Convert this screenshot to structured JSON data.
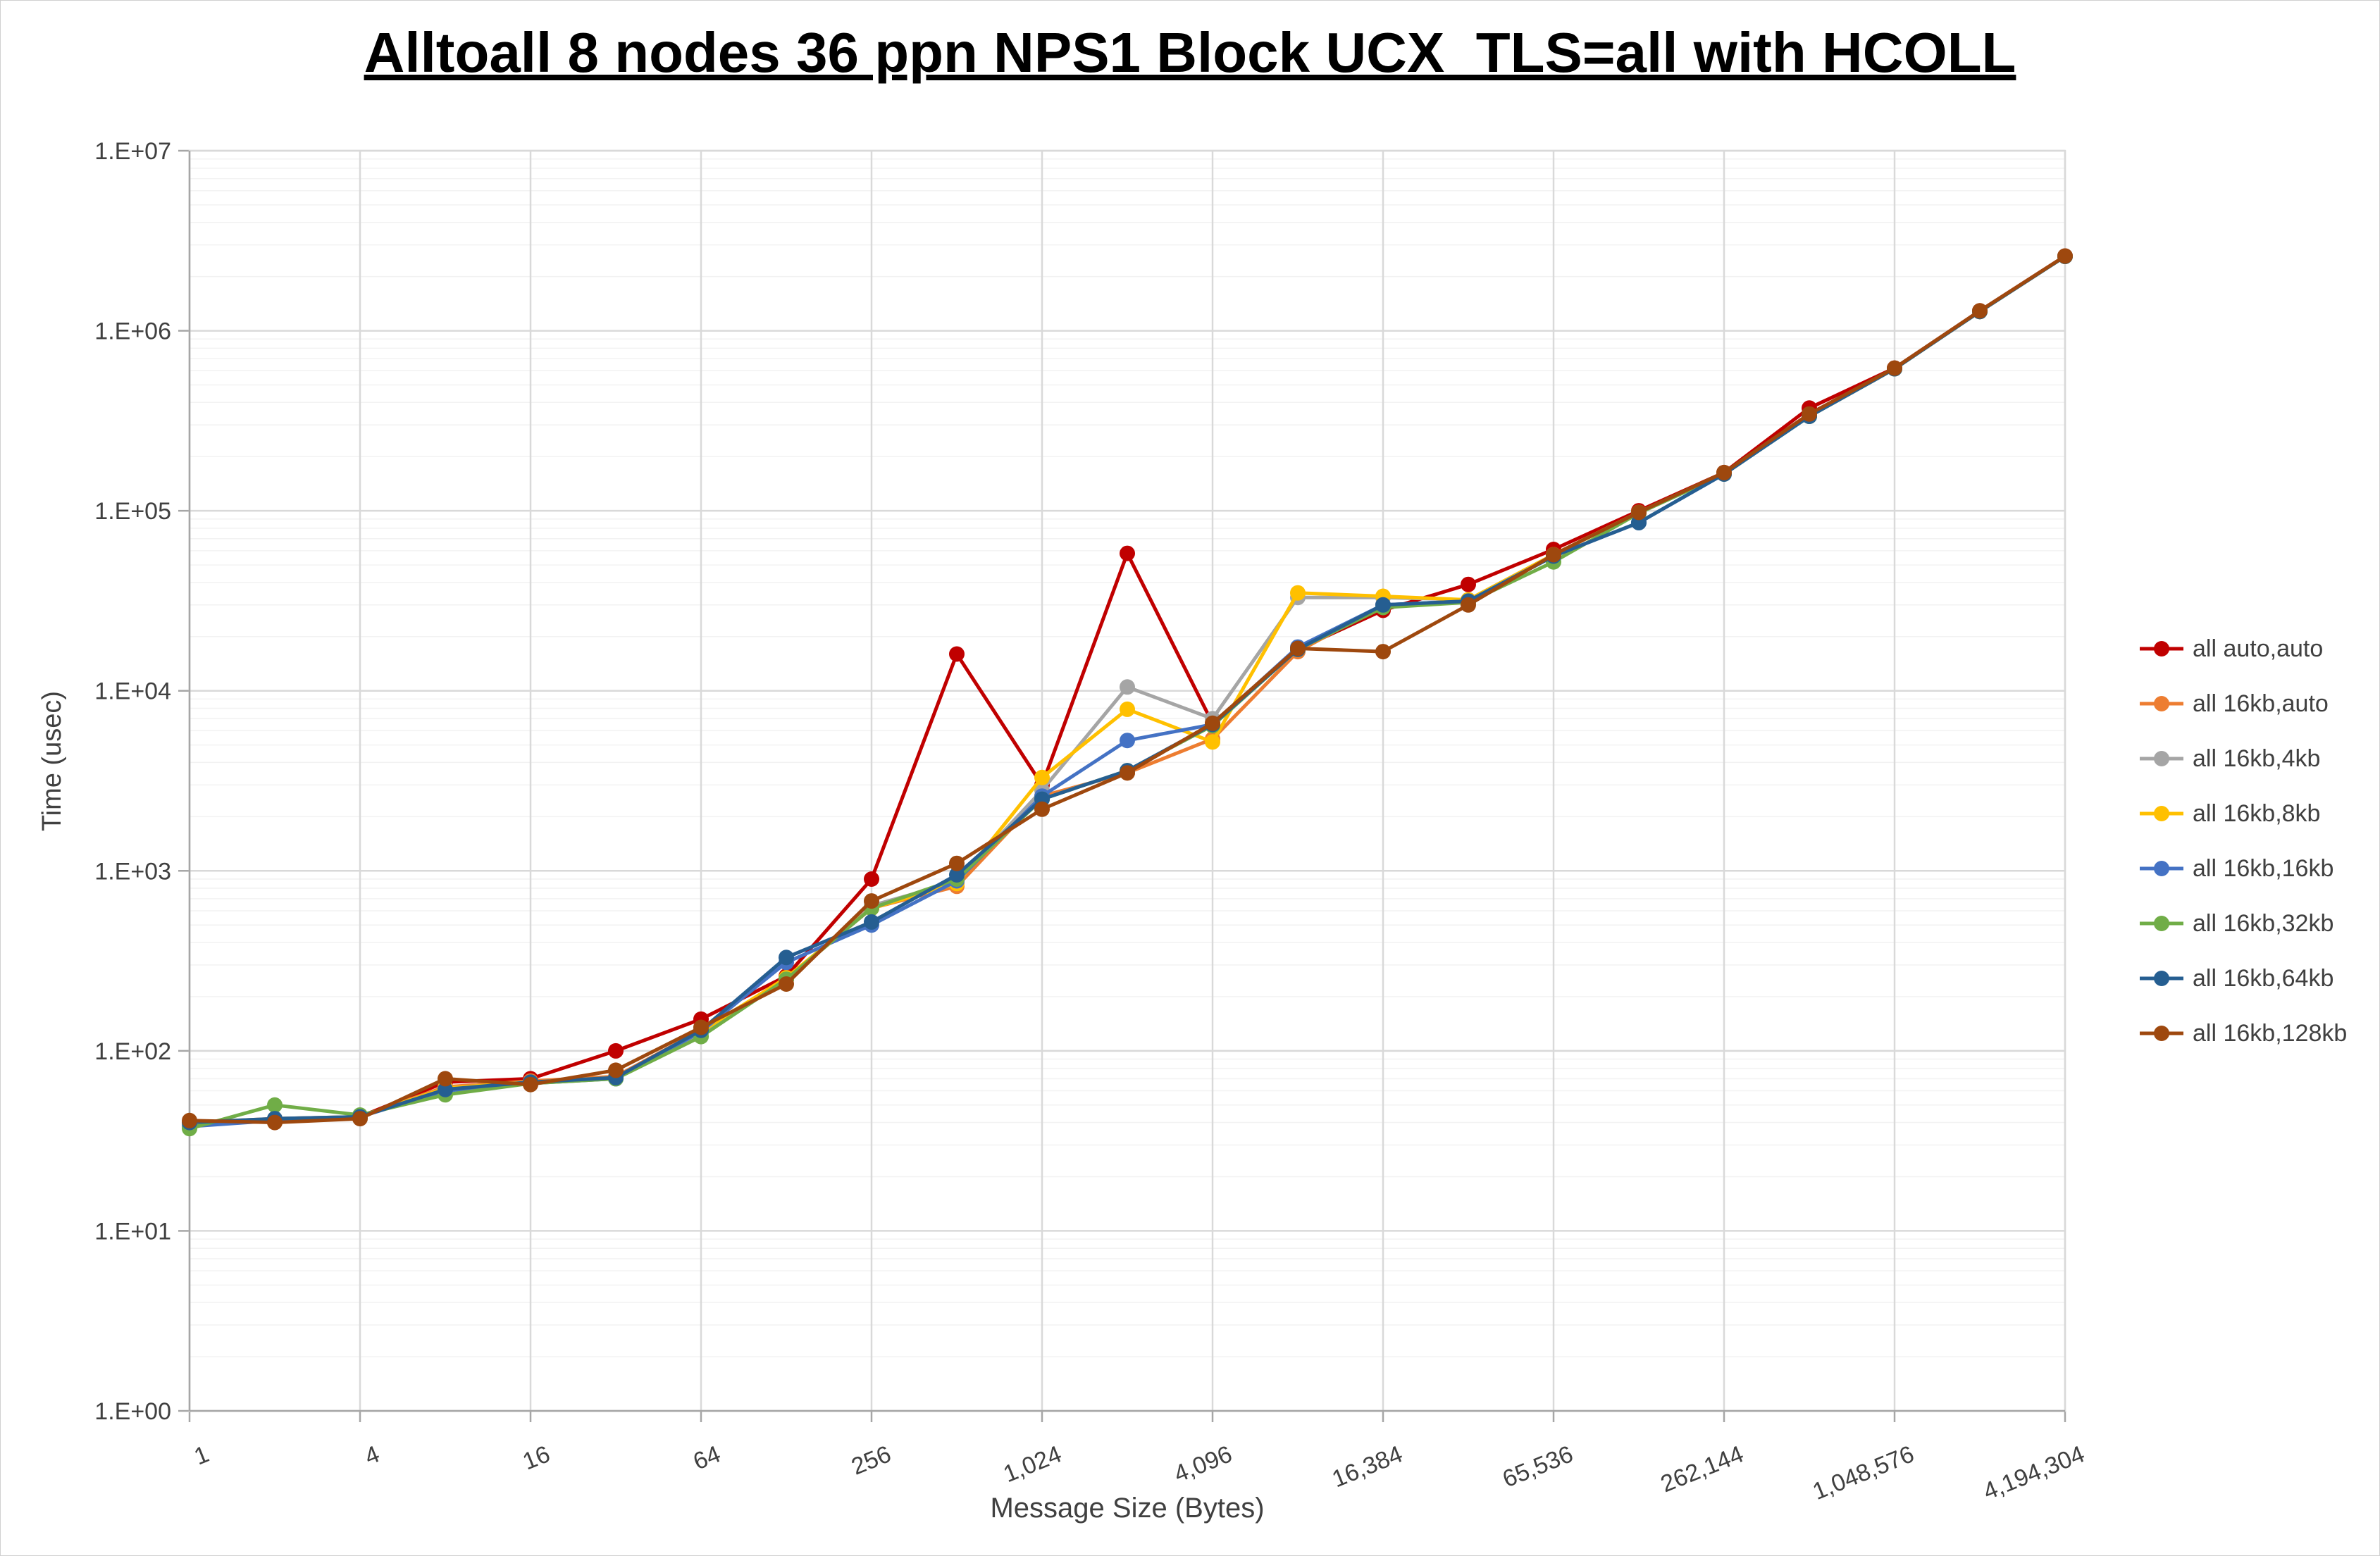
{
  "title": "Alltoall 8 nodes 36 ppn NPS1 Block UCX_TLS=all with HCOLL",
  "chart_data": {
    "type": "line",
    "title": "Alltoall 8 nodes 36 ppn NPS1 Block UCX_TLS=all with HCOLL",
    "xlabel": "Message Size (Bytes)",
    "ylabel": "Time (usec)",
    "xscale": "log2",
    "yscale": "log10",
    "xlim": [
      1,
      4194304
    ],
    "ylim": [
      1,
      10000000
    ],
    "grid": true,
    "legend_position": "right",
    "x": [
      1,
      2,
      4,
      8,
      16,
      32,
      64,
      128,
      256,
      512,
      1024,
      2048,
      4096,
      8192,
      16384,
      32768,
      65536,
      131072,
      262144,
      524288,
      1048576,
      2097152,
      4194304
    ],
    "x_tick_labels": [
      "1",
      "4",
      "16",
      "64",
      "256",
      "1,024",
      "4,096",
      "16,384",
      "65,536",
      "262,144",
      "1,048,576",
      "4,194,304"
    ],
    "y_tick_labels": [
      "1.E+00",
      "1.E+01",
      "1.E+02",
      "1.E+03",
      "1.E+04",
      "1.E+05",
      "1.E+06",
      "1.E+07"
    ],
    "series": [
      {
        "name": "all auto,auto",
        "color": "#C00000",
        "values": [
          40,
          41,
          43,
          67,
          70,
          100,
          150,
          260,
          900,
          16000,
          3000,
          58000,
          6600,
          17000,
          28000,
          39000,
          61000,
          100000,
          163000,
          372000,
          620000,
          1290000,
          2600000
        ]
      },
      {
        "name": "all 16kb,auto",
        "color": "#ED7D31",
        "values": [
          40,
          42,
          43,
          63,
          68,
          72,
          130,
          250,
          620,
          820,
          2600,
          3500,
          5400,
          16500,
          30000,
          31000,
          57000,
          98000,
          162000,
          335000,
          615000,
          1280000,
          2590000
        ]
      },
      {
        "name": "all 16kb,4kb",
        "color": "#A5A5A5",
        "values": [
          39,
          42,
          43,
          62,
          67,
          71,
          125,
          250,
          640,
          870,
          2800,
          10500,
          7000,
          33000,
          33000,
          32000,
          57000,
          98000,
          162000,
          335000,
          615000,
          1280000,
          2590000
        ]
      },
      {
        "name": "all 16kb,8kb",
        "color": "#FFC000",
        "values": [
          39,
          41,
          43,
          62,
          67,
          71,
          128,
          255,
          620,
          850,
          3300,
          7900,
          5200,
          35000,
          33500,
          32000,
          57000,
          98000,
          162000,
          335000,
          615000,
          1280000,
          2590000
        ]
      },
      {
        "name": "all 16kb,16kb",
        "color": "#4472C4",
        "values": [
          38,
          41,
          43,
          60,
          66,
          70,
          128,
          310,
          500,
          880,
          2600,
          5300,
          6500,
          17500,
          30000,
          31500,
          56000,
          86000,
          160000,
          335000,
          615000,
          1280000,
          2590000
        ]
      },
      {
        "name": "all 16kb,32kb",
        "color": "#70AD47",
        "values": [
          37,
          50,
          44,
          57,
          66,
          70,
          120,
          250,
          620,
          900,
          2500,
          3600,
          6400,
          17000,
          29000,
          31000,
          52000,
          97000,
          160000,
          335000,
          615000,
          1280000,
          2590000
        ]
      },
      {
        "name": "all 16kb,64kb",
        "color": "#255E91",
        "values": [
          40,
          42,
          43,
          61,
          67,
          71,
          130,
          330,
          520,
          950,
          2500,
          3600,
          6500,
          17000,
          30000,
          31500,
          56000,
          86000,
          160000,
          335000,
          615000,
          1280000,
          2590000
        ]
      },
      {
        "name": "all 16kb,128kb",
        "color": "#9E480E",
        "values": [
          41,
          40,
          42,
          70,
          65,
          78,
          135,
          235,
          680,
          1100,
          2200,
          3500,
          6600,
          17200,
          16500,
          30000,
          57000,
          98000,
          163000,
          345000,
          620000,
          1290000,
          2600000
        ]
      }
    ]
  }
}
